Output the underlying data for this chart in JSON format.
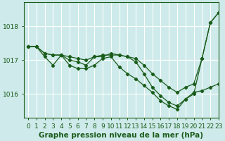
{
  "title": "Graphe pression niveau de la mer (hPa)",
  "bg_color": "#ceeaea",
  "grid_color": "#ffffff",
  "line_color": "#1a5c1a",
  "marker_color": "#1a5c1a",
  "xlim": [
    -0.5,
    23
  ],
  "ylim": [
    1015.3,
    1018.7
  ],
  "yticks": [
    1016,
    1017,
    1018
  ],
  "xticks": [
    0,
    1,
    2,
    3,
    4,
    5,
    6,
    7,
    8,
    9,
    10,
    11,
    12,
    13,
    14,
    15,
    16,
    17,
    18,
    19,
    20,
    21,
    22,
    23
  ],
  "series": [
    [
      1017.4,
      1017.4,
      1017.2,
      1017.15,
      1017.15,
      1017.1,
      1017.05,
      1017.0,
      1017.1,
      1017.15,
      1017.15,
      1017.15,
      1017.1,
      1017.05,
      1016.85,
      1016.6,
      1016.4,
      1016.2,
      1016.05,
      1016.2,
      1016.3,
      1017.05,
      1018.1,
      1018.4
    ],
    [
      1017.4,
      1017.4,
      1017.1,
      1016.85,
      1017.15,
      1016.85,
      1016.75,
      1016.75,
      1016.85,
      1017.05,
      1017.1,
      1016.8,
      1016.6,
      1016.45,
      1016.25,
      1016.05,
      1015.8,
      1015.65,
      1015.55,
      1015.85,
      1016.0,
      1017.05,
      1018.1,
      1018.4
    ],
    [
      1017.4,
      1017.4,
      1017.2,
      1017.15,
      1017.15,
      1017.0,
      1016.95,
      1016.85,
      1017.1,
      1017.1,
      1017.2,
      1017.15,
      1017.1,
      1016.95,
      1016.6,
      1016.2,
      1015.95,
      1015.75,
      1015.65,
      1015.85,
      1016.05,
      1016.1,
      1016.2,
      1016.3
    ]
  ],
  "title_fontsize": 7.5,
  "tick_fontsize": 6.5,
  "linewidth": 0.9,
  "markersize": 2.2
}
